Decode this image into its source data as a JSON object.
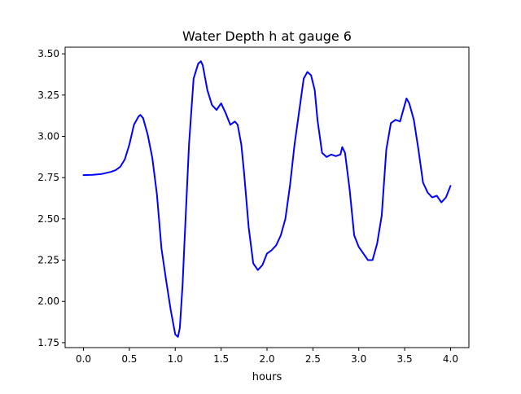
{
  "chart_data": {
    "type": "line",
    "title": "Water Depth h at gauge 6",
    "xlabel": "hours",
    "ylabel": "",
    "xlim": [
      -0.2,
      4.2
    ],
    "ylim": [
      1.72,
      3.54
    ],
    "xticks": [
      0.0,
      0.5,
      1.0,
      1.5,
      2.0,
      2.5,
      3.0,
      3.5,
      4.0
    ],
    "xtick_labels": [
      "0.0",
      "0.5",
      "1.0",
      "1.5",
      "2.0",
      "2.5",
      "3.0",
      "3.5",
      "4.0"
    ],
    "yticks": [
      1.75,
      2.0,
      2.25,
      2.5,
      2.75,
      3.0,
      3.25,
      3.5
    ],
    "ytick_labels": [
      "1.75",
      "2.00",
      "2.25",
      "2.50",
      "2.75",
      "3.00",
      "3.25",
      "3.50"
    ],
    "grid": false,
    "legend": "none",
    "line_color": "#0000ff",
    "series": [
      {
        "x": [
          0.0,
          0.1,
          0.2,
          0.3,
          0.35,
          0.4,
          0.45,
          0.5,
          0.55,
          0.6,
          0.62,
          0.65,
          0.7,
          0.75,
          0.8,
          0.85,
          0.9,
          0.95,
          1.0,
          1.03,
          1.05,
          1.08,
          1.1,
          1.15,
          1.2,
          1.25,
          1.28,
          1.3,
          1.35,
          1.4,
          1.45,
          1.5,
          1.55,
          1.6,
          1.65,
          1.68,
          1.72,
          1.75,
          1.8,
          1.85,
          1.9,
          1.95,
          2.0,
          2.05,
          2.1,
          2.15,
          2.2,
          2.25,
          2.3,
          2.35,
          2.4,
          2.44,
          2.48,
          2.52,
          2.55,
          2.6,
          2.65,
          2.7,
          2.75,
          2.8,
          2.82,
          2.85,
          2.9,
          2.95,
          3.0,
          3.05,
          3.1,
          3.15,
          3.2,
          3.25,
          3.3,
          3.35,
          3.4,
          3.45,
          3.48,
          3.52,
          3.55,
          3.6,
          3.65,
          3.7,
          3.75,
          3.8,
          3.85,
          3.9,
          3.95,
          4.0
        ],
        "values": [
          2.765,
          2.767,
          2.772,
          2.785,
          2.795,
          2.815,
          2.86,
          2.95,
          3.07,
          3.12,
          3.13,
          3.11,
          3.01,
          2.87,
          2.65,
          2.32,
          2.13,
          1.95,
          1.8,
          1.785,
          1.84,
          2.1,
          2.35,
          2.95,
          3.35,
          3.44,
          3.455,
          3.43,
          3.28,
          3.19,
          3.16,
          3.2,
          3.14,
          3.07,
          3.09,
          3.07,
          2.95,
          2.78,
          2.45,
          2.23,
          2.19,
          2.22,
          2.29,
          2.31,
          2.34,
          2.4,
          2.5,
          2.7,
          2.95,
          3.15,
          3.35,
          3.39,
          3.37,
          3.28,
          3.1,
          2.9,
          2.875,
          2.89,
          2.88,
          2.89,
          2.935,
          2.9,
          2.68,
          2.4,
          2.33,
          2.29,
          2.25,
          2.25,
          2.35,
          2.52,
          2.92,
          3.08,
          3.1,
          3.09,
          3.15,
          3.23,
          3.2,
          3.1,
          2.92,
          2.72,
          2.66,
          2.63,
          2.64,
          2.6,
          2.63,
          2.7
        ]
      }
    ]
  }
}
